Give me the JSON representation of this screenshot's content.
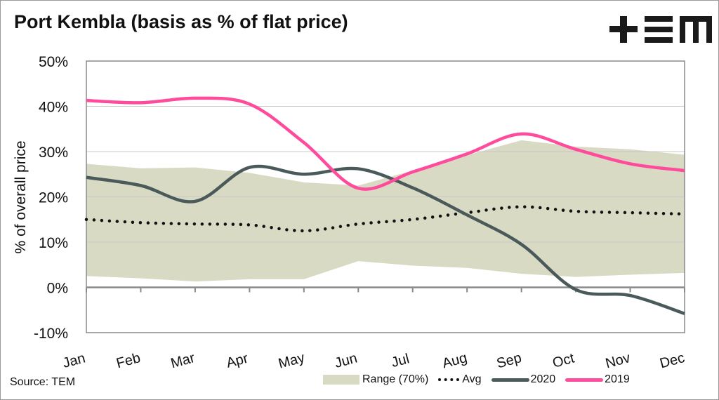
{
  "header": {
    "title": "Port Kembla (basis as % of flat price)",
    "logo_text": "TEM"
  },
  "footer": {
    "source": "Source: TEM"
  },
  "colors": {
    "range": "#d9dac4",
    "avg": "#111111",
    "s2020": "#4a5a5a",
    "s2019": "#ff4b9b",
    "grid": "#c8c8c8",
    "axis": "#8a8a8a"
  },
  "chart_data": {
    "type": "line",
    "title": "Port Kembla (basis as % of flat price)",
    "xlabel": "",
    "ylabel": "% of overall price",
    "ylim": [
      -10,
      50
    ],
    "yticks": [
      50,
      40,
      30,
      20,
      10,
      0,
      -10
    ],
    "ytick_labels": [
      "50%",
      "40%",
      "30%",
      "20%",
      "10%",
      "0%",
      "-10%"
    ],
    "grid": true,
    "legend_placement": "bottom-right",
    "categories": [
      "Jan",
      "Feb",
      "Mar",
      "Apr",
      "May",
      "Jun",
      "Jul",
      "Aug",
      "Sep",
      "Oct",
      "Nov",
      "Dec"
    ],
    "range": {
      "name": "Range (70%)",
      "upper": [
        27.3,
        26.3,
        26.5,
        25.3,
        23.2,
        22.5,
        25.8,
        29.2,
        32.5,
        31.1,
        30.5,
        29.3
      ],
      "lower": [
        2.5,
        2.0,
        1.3,
        1.8,
        1.8,
        5.8,
        4.8,
        4.3,
        3.0,
        2.3,
        2.8,
        3.2
      ]
    },
    "series": [
      {
        "name": "Avg",
        "values": [
          15.0,
          14.3,
          14.0,
          13.8,
          12.5,
          14.0,
          15.0,
          16.5,
          17.8,
          16.8,
          16.5,
          16.2
        ]
      },
      {
        "name": "2020",
        "values": [
          24.3,
          22.5,
          19.0,
          26.5,
          25.0,
          26.2,
          22.0,
          16.0,
          9.5,
          -0.5,
          -1.8,
          -5.8
        ]
      },
      {
        "name": "2019",
        "values": [
          41.3,
          40.8,
          41.8,
          40.5,
          32.0,
          21.9,
          25.5,
          29.5,
          33.9,
          30.5,
          27.3,
          25.8
        ]
      }
    ]
  }
}
